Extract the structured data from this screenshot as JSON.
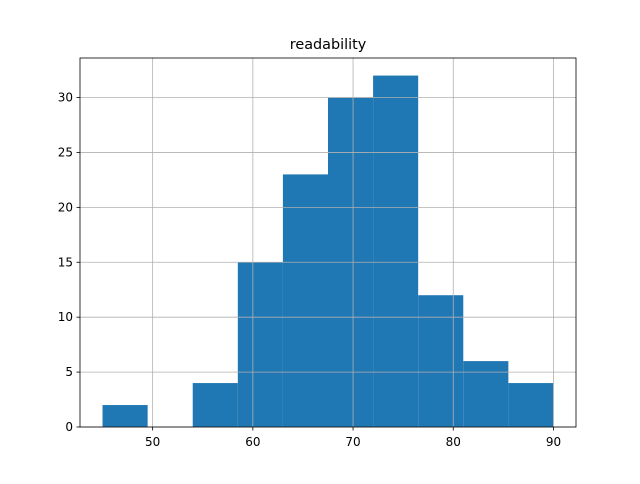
{
  "chart_data": {
    "type": "histogram",
    "title": "readability",
    "bins": [
      45,
      49.5,
      54,
      58.5,
      63,
      67.5,
      72,
      76.5,
      81,
      85.5,
      90
    ],
    "values": [
      2,
      0,
      4,
      15,
      23,
      30,
      32,
      12,
      6,
      4
    ],
    "color": "#1f77b4",
    "xlim": [
      42.75,
      92.25
    ],
    "xticks": [
      50,
      60,
      70,
      80,
      90
    ],
    "ylim": [
      0,
      33.6
    ],
    "yticks": [
      0,
      5,
      10,
      15,
      20,
      25,
      30
    ],
    "grid": true
  }
}
